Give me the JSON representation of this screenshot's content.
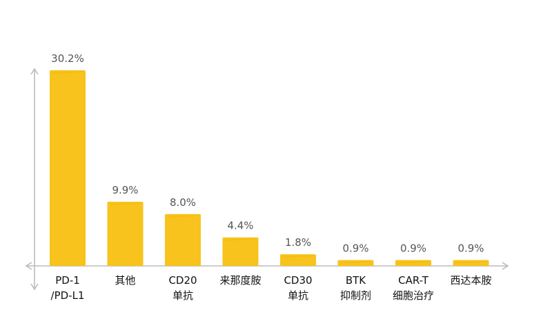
{
  "chart_data": {
    "type": "bar",
    "categories": [
      [
        "PD-1",
        "/PD-L1"
      ],
      [
        "其他"
      ],
      [
        "CD20",
        "单抗"
      ],
      [
        "来那度胺"
      ],
      [
        "CD30",
        "单抗"
      ],
      [
        "BTK",
        "抑制剂"
      ],
      [
        "CAR-T",
        "细胞治疗"
      ],
      [
        "西达本胺"
      ]
    ],
    "values": [
      30.2,
      9.9,
      8.0,
      4.4,
      1.8,
      0.9,
      0.9,
      0.9
    ],
    "value_labels": [
      "30.2%",
      "9.9%",
      "8.0%",
      "4.4%",
      "1.8%",
      "0.9%",
      "0.9%",
      "0.9%"
    ],
    "title": "",
    "xlabel": "",
    "ylabel": "",
    "ylim": [
      0,
      30.2
    ],
    "grid": false,
    "bar_color": "#F7C31C",
    "axis_color": "#bbbbbb"
  }
}
